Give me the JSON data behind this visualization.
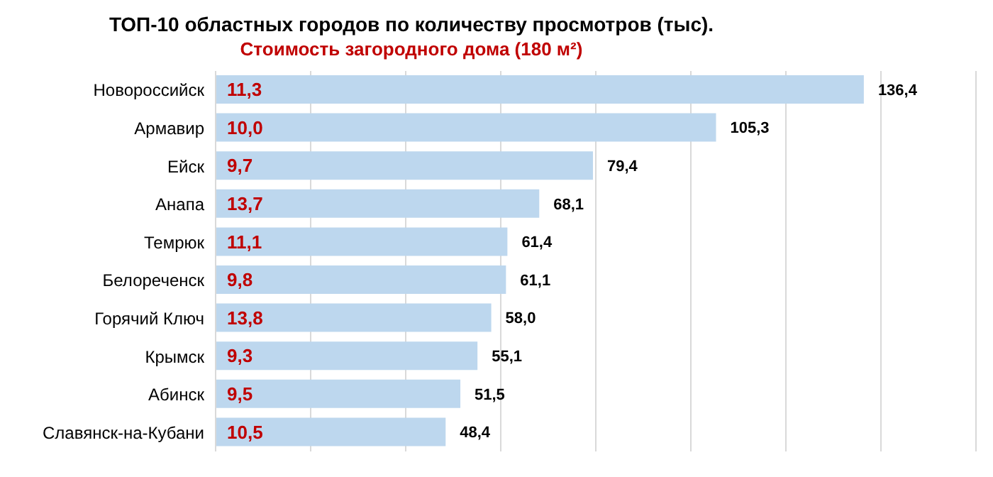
{
  "chart_data": {
    "type": "bar",
    "orientation": "horizontal",
    "title": "ТОП-10 областных городов по количеству просмотров (тыс).",
    "subtitle": "Стоимость загородного дома (180 м²)",
    "categories": [
      "Новороссийск",
      "Армавир",
      "Ейск",
      "Анапа",
      "Темрюк",
      "Белореченск",
      "Горячий Ключ",
      "Крымск",
      "Абинск",
      "Славянск-на-Кубани"
    ],
    "values": [
      136.4,
      105.3,
      79.4,
      68.1,
      61.4,
      61.1,
      58.0,
      55.1,
      51.5,
      48.4
    ],
    "value_labels": [
      "136,4",
      "105,3",
      "79,4",
      "68,1",
      "61,4",
      "61,1",
      "58,0",
      "55,1",
      "51,5",
      "48,4"
    ],
    "color": "#bdd7ee",
    "xlim": [
      0,
      160
    ],
    "tick_labels": "y",
    "grid": "x",
    "legend": false,
    "annotations": [
      {
        "text": "11,3",
        "y": "Новороссийск"
      },
      {
        "text": "10,0",
        "y": "Армавир"
      },
      {
        "text": "9,7",
        "y": "Ейск"
      },
      {
        "text": "13,7",
        "y": "Анапа"
      },
      {
        "text": "11,1",
        "y": "Темрюк"
      },
      {
        "text": "9,8",
        "y": "Белореченск"
      },
      {
        "text": "13,8",
        "y": "Горячий Ключ"
      },
      {
        "text": "9,3",
        "y": "Крымск"
      },
      {
        "text": "9,5",
        "y": "Абинск"
      },
      {
        "text": "10,5",
        "y": "Славянск-на-Кубани"
      }
    ]
  }
}
